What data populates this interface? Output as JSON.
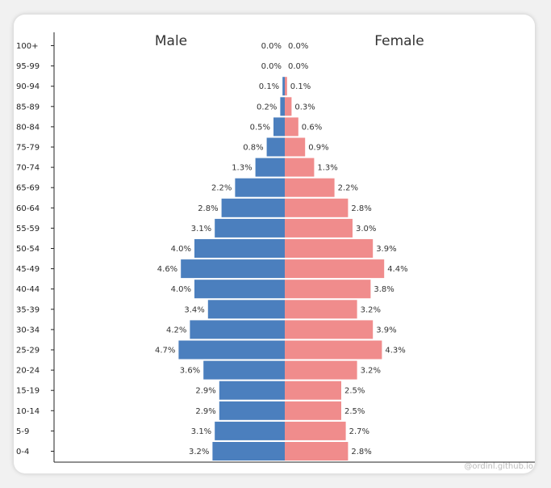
{
  "chart_data": {
    "type": "bar",
    "title": "",
    "xlabel": "",
    "ylabel": "",
    "orientation": "horizontal-mirrored",
    "colors": {
      "male": "#4b7fbe",
      "female": "#f08c8c"
    },
    "categories": [
      "100+",
      "95-99",
      "90-94",
      "85-89",
      "80-84",
      "75-79",
      "70-74",
      "65-69",
      "60-64",
      "55-59",
      "50-54",
      "45-49",
      "40-44",
      "35-39",
      "30-34",
      "25-29",
      "20-24",
      "15-19",
      "10-14",
      "5-9",
      "0-4"
    ],
    "series": [
      {
        "name": "Male",
        "values": [
          0.0,
          0.0,
          0.1,
          0.2,
          0.5,
          0.8,
          1.3,
          2.2,
          2.8,
          3.1,
          4.0,
          4.6,
          4.0,
          3.4,
          4.2,
          4.7,
          3.6,
          2.9,
          2.9,
          3.1,
          3.2
        ],
        "labels": [
          "0.0%",
          "0.0%",
          "0.1%",
          "0.2%",
          "0.5%",
          "0.8%",
          "1.3%",
          "2.2%",
          "2.8%",
          "3.1%",
          "4.0%",
          "4.6%",
          "4.0%",
          "3.4%",
          "4.2%",
          "4.7%",
          "3.6%",
          "2.9%",
          "2.9%",
          "3.1%",
          "3.2%"
        ]
      },
      {
        "name": "Female",
        "values": [
          0.0,
          0.0,
          0.1,
          0.3,
          0.6,
          0.9,
          1.3,
          2.2,
          2.8,
          3.0,
          3.9,
          4.4,
          3.8,
          3.2,
          3.9,
          4.3,
          3.2,
          2.5,
          2.5,
          2.7,
          2.8
        ],
        "labels": [
          "0.0%",
          "0.0%",
          "0.1%",
          "0.3%",
          "0.6%",
          "0.9%",
          "1.3%",
          "2.2%",
          "2.8%",
          "3.0%",
          "3.9%",
          "4.4%",
          "3.8%",
          "3.2%",
          "3.9%",
          "4.3%",
          "3.2%",
          "2.5%",
          "2.5%",
          "2.7%",
          "2.8%"
        ]
      }
    ],
    "xlim": [
      -5,
      5
    ],
    "grid": false
  },
  "watermark": "@ordinl.github.io"
}
